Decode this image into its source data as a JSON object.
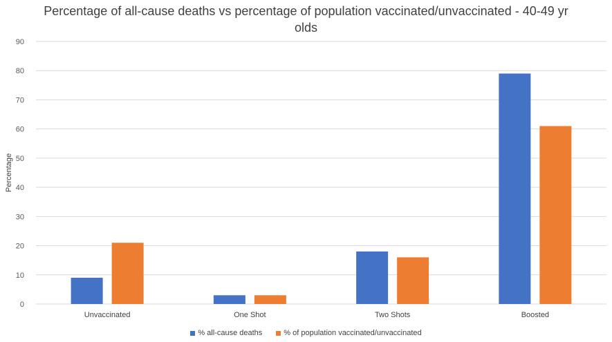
{
  "chart_data": {
    "type": "bar",
    "title_lines": [
      "Percentage of all-cause deaths vs percentage of population vaccinated/unvaccinated - 40-49 yr",
      "olds"
    ],
    "ylabel": "Percentage",
    "xlabel": "",
    "ylim": [
      0,
      90
    ],
    "yticks": [
      0,
      10,
      20,
      30,
      40,
      50,
      60,
      70,
      80,
      90
    ],
    "grid": true,
    "legend_position": "bottom",
    "categories": [
      "Unvaccinated",
      "One Shot",
      "Two Shots",
      "Boosted"
    ],
    "series": [
      {
        "name": "% all-cause deaths",
        "color": "#4472C4",
        "values": [
          9,
          3,
          18,
          79
        ]
      },
      {
        "name": "% of population vaccinated/unvaccinated",
        "color": "#ED7D31",
        "values": [
          21,
          3,
          16,
          61
        ]
      }
    ]
  }
}
